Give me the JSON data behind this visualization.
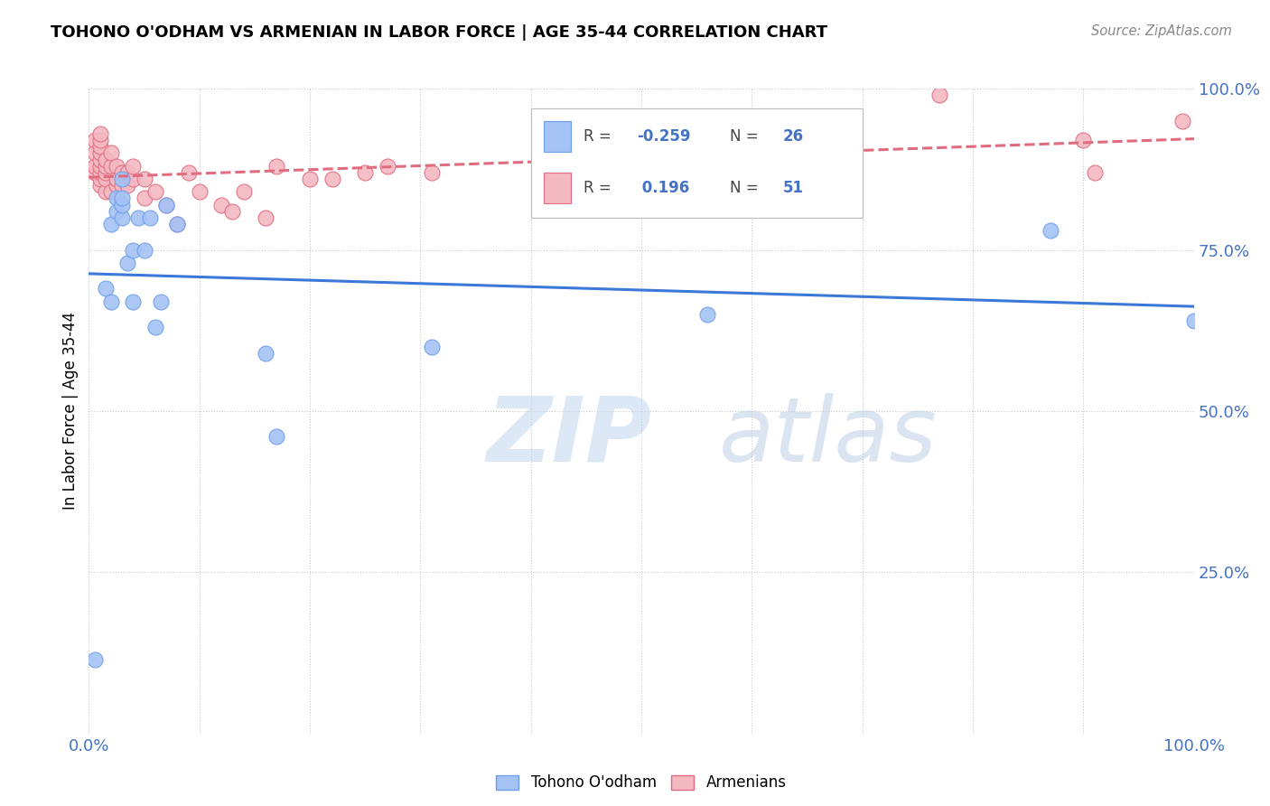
{
  "title": "TOHONO O'ODHAM VS ARMENIAN IN LABOR FORCE | AGE 35-44 CORRELATION CHART",
  "source": "Source: ZipAtlas.com",
  "ylabel": "In Labor Force | Age 35-44",
  "xlim": [
    0,
    1
  ],
  "ylim": [
    0,
    1
  ],
  "xticks": [
    0,
    0.1,
    0.2,
    0.3,
    0.4,
    0.5,
    0.6,
    0.7,
    0.8,
    0.9,
    1.0
  ],
  "yticks": [
    0,
    0.25,
    0.5,
    0.75,
    1.0
  ],
  "blue_R": "-0.259",
  "blue_N": "26",
  "pink_R": "0.196",
  "pink_N": "51",
  "blue_color": "#a4c2f4",
  "pink_color": "#f4b8c1",
  "blue_edge_color": "#6d9eeb",
  "pink_edge_color": "#e06c80",
  "blue_line_color": "#3c78d8",
  "pink_line_color": "#cc4466",
  "legend_label_blue": "Tohono O'odham",
  "legend_label_pink": "Armenians",
  "blue_x": [
    0.005,
    0.015,
    0.02,
    0.02,
    0.025,
    0.025,
    0.03,
    0.03,
    0.03,
    0.03,
    0.035,
    0.04,
    0.04,
    0.045,
    0.05,
    0.055,
    0.06,
    0.065,
    0.07,
    0.08,
    0.16,
    0.17,
    0.31,
    0.56,
    0.87,
    1.0
  ],
  "blue_y": [
    0.115,
    0.69,
    0.67,
    0.79,
    0.81,
    0.83,
    0.8,
    0.82,
    0.83,
    0.86,
    0.73,
    0.67,
    0.75,
    0.8,
    0.75,
    0.8,
    0.63,
    0.67,
    0.82,
    0.79,
    0.59,
    0.46,
    0.6,
    0.65,
    0.78,
    0.64
  ],
  "pink_x": [
    0.005,
    0.005,
    0.005,
    0.005,
    0.01,
    0.01,
    0.01,
    0.01,
    0.01,
    0.01,
    0.01,
    0.01,
    0.01,
    0.015,
    0.015,
    0.015,
    0.015,
    0.015,
    0.02,
    0.02,
    0.02,
    0.025,
    0.025,
    0.025,
    0.03,
    0.03,
    0.035,
    0.035,
    0.04,
    0.04,
    0.05,
    0.05,
    0.06,
    0.07,
    0.08,
    0.09,
    0.1,
    0.12,
    0.13,
    0.14,
    0.16,
    0.17,
    0.2,
    0.22,
    0.25,
    0.27,
    0.31,
    0.77,
    0.9,
    0.91,
    0.99
  ],
  "pink_y": [
    0.87,
    0.88,
    0.9,
    0.92,
    0.85,
    0.86,
    0.87,
    0.88,
    0.89,
    0.9,
    0.91,
    0.92,
    0.93,
    0.84,
    0.86,
    0.87,
    0.88,
    0.89,
    0.84,
    0.88,
    0.9,
    0.85,
    0.86,
    0.88,
    0.85,
    0.87,
    0.85,
    0.87,
    0.86,
    0.88,
    0.83,
    0.86,
    0.84,
    0.82,
    0.79,
    0.87,
    0.84,
    0.82,
    0.81,
    0.84,
    0.8,
    0.88,
    0.86,
    0.86,
    0.87,
    0.88,
    0.87,
    0.99,
    0.92,
    0.87,
    0.95
  ]
}
